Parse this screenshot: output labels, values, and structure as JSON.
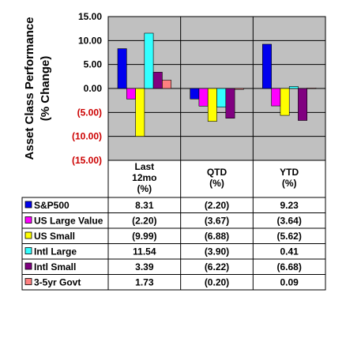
{
  "chart_data": {
    "type": "bar",
    "ylabel_lines": [
      "Asset Class Performance",
      "(% Change)"
    ],
    "ylim": [
      -15,
      15
    ],
    "yticks": [
      "15.00",
      "10.00",
      "5.00",
      "0.00",
      "(5.00)",
      "(10.00)",
      "(15.00)"
    ],
    "negative_tick_color": "#cc0000",
    "plot_background": "#c0c0c0",
    "categories": [
      {
        "lines": [
          "Last",
          "12mo",
          "(%)"
        ]
      },
      {
        "lines": [
          "QTD",
          "(%)"
        ]
      },
      {
        "lines": [
          "YTD",
          "(%)"
        ]
      }
    ],
    "series": [
      {
        "name": "S&P500",
        "color": "#0000ee",
        "values": [
          8.31,
          -2.2,
          9.23
        ],
        "labels": [
          "8.31",
          "(2.20)",
          "9.23"
        ]
      },
      {
        "name": "US Large Value",
        "color": "#ff00ff",
        "values": [
          -2.2,
          -3.67,
          -3.64
        ],
        "labels": [
          "(2.20)",
          "(3.67)",
          "(3.64)"
        ]
      },
      {
        "name": "US Small",
        "color": "#ffff00",
        "values": [
          -9.99,
          -6.88,
          -5.62
        ],
        "labels": [
          "(9.99)",
          "(6.88)",
          "(5.62)"
        ]
      },
      {
        "name": "Intl Large",
        "color": "#33ffff",
        "values": [
          11.54,
          -3.9,
          0.41
        ],
        "labels": [
          "11.54",
          "(3.90)",
          "0.41"
        ]
      },
      {
        "name": "Intl Small",
        "color": "#800080",
        "values": [
          3.39,
          -6.22,
          -6.68
        ],
        "labels": [
          "3.39",
          "(6.22)",
          "(6.68)"
        ]
      },
      {
        "name": "3-5yr Govt",
        "color": "#ff8080",
        "values": [
          1.73,
          -0.2,
          0.09
        ],
        "labels": [
          "1.73",
          "(0.20)",
          "0.09"
        ]
      }
    ]
  }
}
